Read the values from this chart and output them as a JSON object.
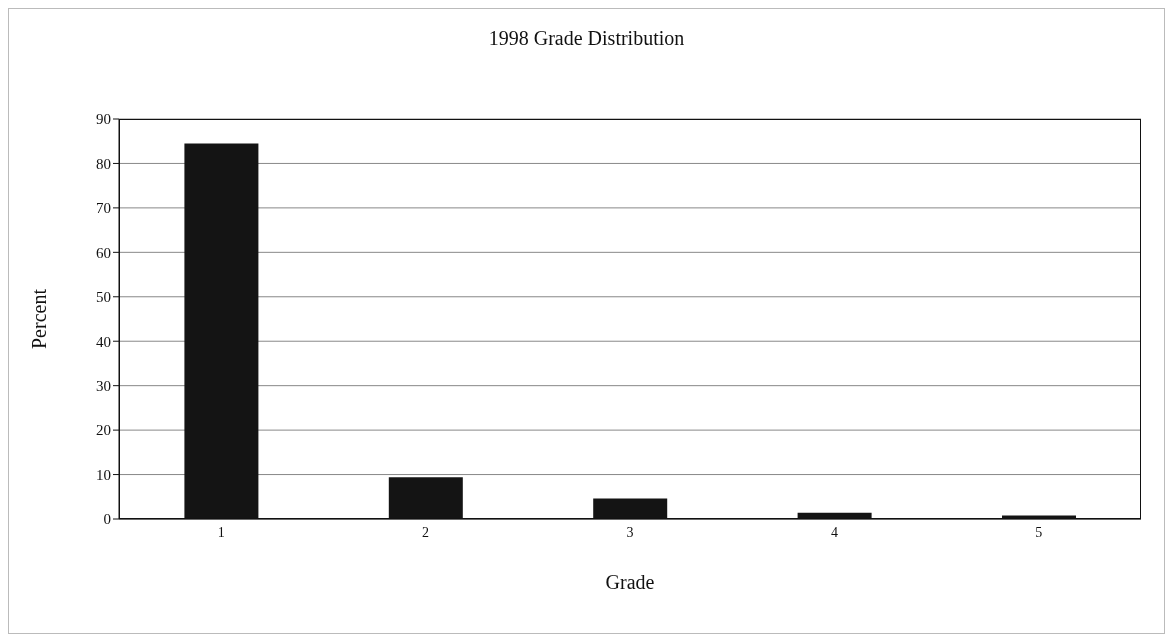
{
  "chart_data": {
    "type": "bar",
    "title": "1998 Grade Distribution",
    "xlabel": "Grade",
    "ylabel": "Percent",
    "categories": [
      "1",
      "2",
      "3",
      "4",
      "5"
    ],
    "values": [
      84.5,
      9.4,
      4.6,
      1.4,
      0.8
    ],
    "color": "#141414",
    "ylim": [
      0,
      90
    ],
    "yticks": [
      0,
      10,
      20,
      30,
      40,
      50,
      60,
      70,
      80,
      90
    ],
    "grid": "y"
  }
}
